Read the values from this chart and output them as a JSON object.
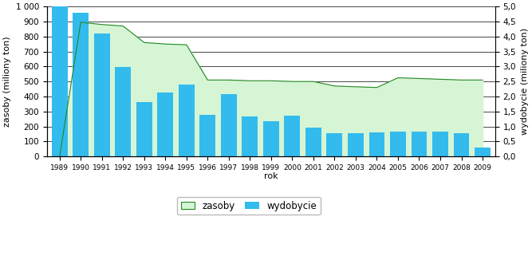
{
  "years": [
    1989,
    1990,
    1991,
    1992,
    1993,
    1994,
    1995,
    1996,
    1997,
    1998,
    1999,
    2000,
    2001,
    2002,
    2003,
    2004,
    2005,
    2006,
    2007,
    2008,
    2009
  ],
  "zasoby": [
    0,
    895,
    880,
    870,
    760,
    750,
    745,
    510,
    510,
    505,
    505,
    500,
    500,
    470,
    465,
    460,
    525,
    520,
    515,
    510,
    510
  ],
  "wydobycie_left": [
    1000,
    960,
    820,
    595,
    365,
    425,
    480,
    278,
    415,
    265,
    235,
    275,
    193,
    155,
    155,
    160,
    165,
    165,
    165,
    158,
    60
  ],
  "zasoby_color": "#d5f5d5",
  "zasoby_line_color": "#228822",
  "wydobycie_bar_color": "#33bbee",
  "left_ylabel": "zasoby (miliony ton)",
  "right_ylabel": "wydobycie (miliony ton)",
  "xlabel": "rok",
  "left_ylim": [
    0,
    1000
  ],
  "right_ylim": [
    0,
    5.0
  ],
  "bg_color": "#ffffff",
  "grid_color": "#000000",
  "legend_labels": [
    "zasoby",
    "wydobycie"
  ],
  "axis_fontsize": 8,
  "tick_fontsize": 7.5
}
